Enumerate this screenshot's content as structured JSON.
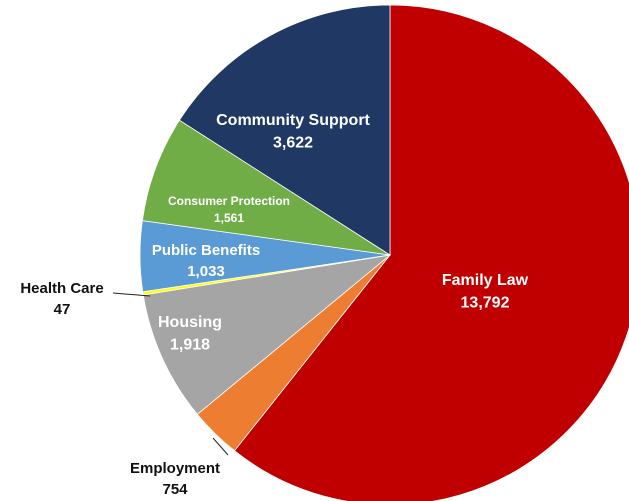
{
  "chart_data": {
    "type": "pie",
    "title": "",
    "start_angle_deg": 0,
    "direction": "clockwise",
    "slices": [
      {
        "name": "Family Law",
        "value": 13792,
        "value_label": "13,792",
        "color": "#c00000",
        "label_position": "inside"
      },
      {
        "name": "Employment",
        "value": 754,
        "value_label": "754",
        "color": "#ed7d31",
        "label_position": "outside"
      },
      {
        "name": "Housing",
        "value": 1918,
        "value_label": "1,918",
        "color": "#a5a5a5",
        "label_position": "inside"
      },
      {
        "name": "Health Care",
        "value": 47,
        "value_label": "47",
        "color": "#ffff00",
        "label_position": "outside"
      },
      {
        "name": "Public Benefits",
        "value": 1033,
        "value_label": "1,033",
        "color": "#5b9bd5",
        "label_position": "inside"
      },
      {
        "name": "Consumer Protection",
        "value": 1561,
        "value_label": "1,561",
        "color": "#70ad47",
        "label_position": "inside"
      },
      {
        "name": "Community Support",
        "value": 3622,
        "value_label": "3,622",
        "color": "#1f3864",
        "label_position": "inside"
      }
    ]
  }
}
